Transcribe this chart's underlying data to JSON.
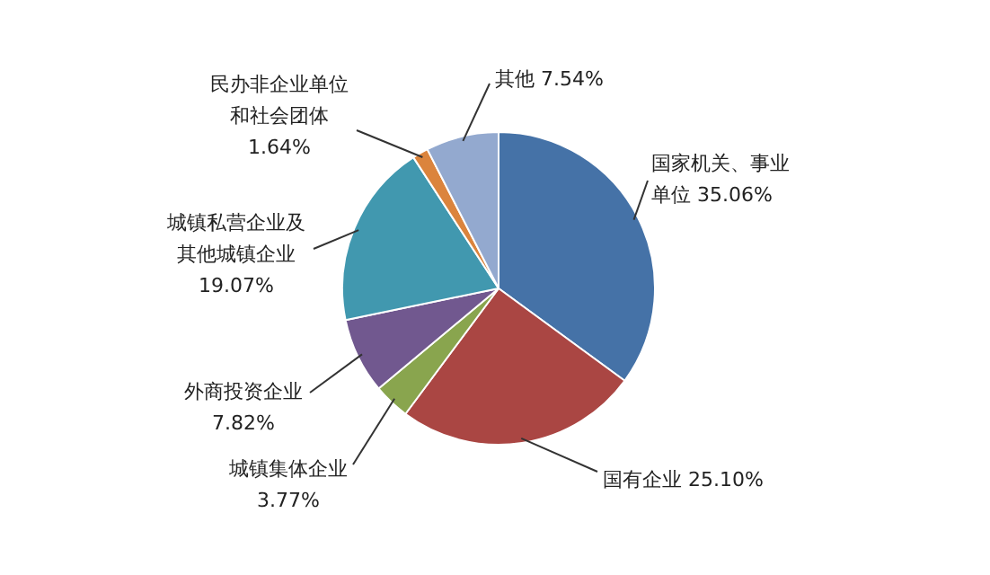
{
  "chart_data": {
    "type": "pie",
    "categories": [
      "国家机关、事业单位",
      "国有企业",
      "城镇集体企业",
      "外商投资企业",
      "城镇私营企业及其他城镇企业",
      "民办非企业单位和社会团体",
      "其他"
    ],
    "values": [
      35.06,
      25.1,
      3.77,
      7.82,
      19.07,
      1.64,
      7.54
    ],
    "value_labels": [
      "35.06%",
      "25.10%",
      "3.77%",
      "7.82%",
      "19.07%",
      "1.64%",
      "7.54%"
    ],
    "colors": [
      "#4572a7",
      "#aa4643",
      "#89a54e",
      "#71588f",
      "#4198af",
      "#db843d",
      "#93a9cf"
    ]
  }
}
